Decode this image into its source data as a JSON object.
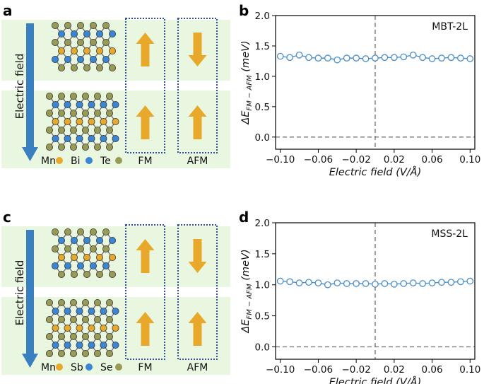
{
  "figure": {
    "panels": [
      {
        "label": "a",
        "field_label": "Electric field",
        "legend": [
          {
            "name": "Mn",
            "color": "#e8a92b"
          },
          {
            "name": "Bi",
            "color": "#3a86d6"
          },
          {
            "name": "Te",
            "color": "#9a9a57"
          }
        ],
        "config_labels": [
          "FM",
          "AFM"
        ],
        "spins": {
          "FM": [
            "up",
            "up"
          ],
          "AFM": [
            "down",
            "up"
          ]
        }
      },
      {
        "label": "c",
        "field_label": "Electric field",
        "legend": [
          {
            "name": "Mn",
            "color": "#e8a92b"
          },
          {
            "name": "Sb",
            "color": "#3a86d6"
          },
          {
            "name": "Se",
            "color": "#9a9a57"
          }
        ],
        "config_labels": [
          "FM",
          "AFM"
        ],
        "spins": {
          "FM": [
            "up",
            "up"
          ],
          "AFM": [
            "down",
            "up"
          ]
        }
      }
    ],
    "colors": {
      "panel_bg": "#eaf7e0",
      "arrow": "#e8a92b",
      "field_arrow": "#3a7fc0",
      "dotted_box": "#2f4f9f",
      "series": "#4a8fc7",
      "refline": "#777777"
    }
  },
  "chart_data": [
    {
      "panel_label": "b",
      "type": "line",
      "title": "MBT-2L",
      "xlabel": "Electric field (V/Å)",
      "ylabel_main": "ΔE",
      "ylabel_sub": "FM − AFM",
      "ylabel_unit": "(meV)",
      "xlim": [
        -0.105,
        0.105
      ],
      "ylim": [
        -0.2,
        2.0
      ],
      "xticks": [
        -0.1,
        -0.06,
        -0.02,
        0.02,
        0.06,
        0.1
      ],
      "xtick_labels": [
        "−0.10",
        "−0.06",
        "−0.02",
        "0.02",
        "0.06",
        "0.10"
      ],
      "yticks": [
        0.0,
        0.5,
        1.0,
        1.5,
        2.0
      ],
      "ytick_labels": [
        "0.0",
        "0.5",
        "1.0",
        "1.5",
        "2.0"
      ],
      "ref_x": 0.0,
      "ref_y": 0.0,
      "series": [
        {
          "name": "MBT-2L",
          "x": [
            -0.1,
            -0.09,
            -0.08,
            -0.07,
            -0.06,
            -0.05,
            -0.04,
            -0.03,
            -0.02,
            -0.01,
            0.0,
            0.01,
            0.02,
            0.03,
            0.04,
            0.05,
            0.06,
            0.07,
            0.08,
            0.09,
            0.1
          ],
          "y": [
            1.33,
            1.31,
            1.35,
            1.31,
            1.3,
            1.3,
            1.27,
            1.3,
            1.3,
            1.29,
            1.3,
            1.31,
            1.31,
            1.32,
            1.35,
            1.31,
            1.29,
            1.3,
            1.31,
            1.3,
            1.29
          ]
        }
      ]
    },
    {
      "panel_label": "d",
      "type": "line",
      "title": "MSS-2L",
      "xlabel": "Electric field (V/Å)",
      "ylabel_main": "ΔE",
      "ylabel_sub": "FM − AFM",
      "ylabel_unit": "(meV)",
      "xlim": [
        -0.105,
        0.105
      ],
      "ylim": [
        -0.2,
        2.0
      ],
      "xticks": [
        -0.1,
        -0.06,
        -0.02,
        0.02,
        0.06,
        0.1
      ],
      "xtick_labels": [
        "−0.10",
        "−0.06",
        "−0.02",
        "0.02",
        "0.06",
        "0.10"
      ],
      "yticks": [
        0.0,
        0.5,
        1.0,
        1.5,
        2.0
      ],
      "ytick_labels": [
        "0.0",
        "0.5",
        "1.0",
        "1.5",
        "2.0"
      ],
      "ref_x": 0.0,
      "ref_y": 0.0,
      "series": [
        {
          "name": "MSS-2L",
          "x": [
            -0.1,
            -0.09,
            -0.08,
            -0.07,
            -0.06,
            -0.05,
            -0.04,
            -0.03,
            -0.02,
            -0.01,
            0.0,
            0.01,
            0.02,
            0.03,
            0.04,
            0.05,
            0.06,
            0.07,
            0.08,
            0.09,
            0.1
          ],
          "y": [
            1.06,
            1.05,
            1.03,
            1.04,
            1.03,
            1.0,
            1.03,
            1.02,
            1.02,
            1.02,
            1.01,
            1.02,
            1.01,
            1.02,
            1.03,
            1.02,
            1.03,
            1.04,
            1.04,
            1.05,
            1.06
          ]
        }
      ]
    }
  ]
}
